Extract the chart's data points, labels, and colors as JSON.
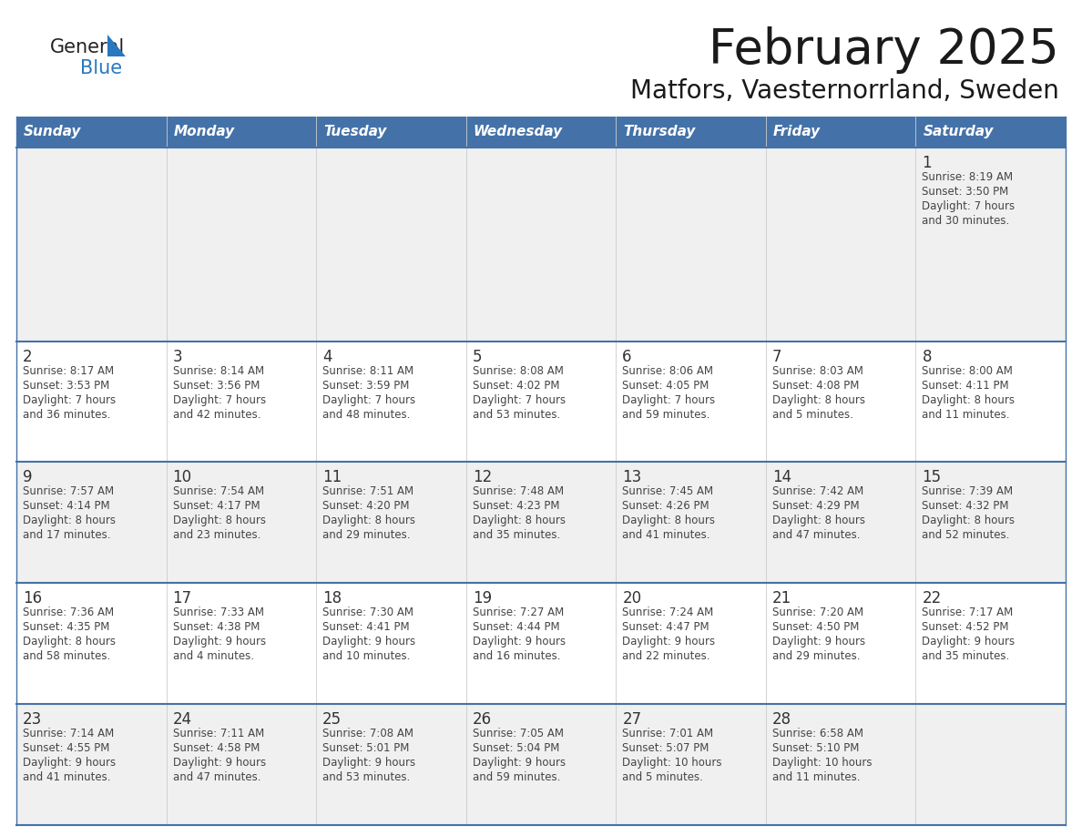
{
  "title": "February 2025",
  "subtitle": "Matfors, Vaesternorrland, Sweden",
  "header_bg": "#4472a8",
  "header_text": "#ffffff",
  "weekdays": [
    "Sunday",
    "Monday",
    "Tuesday",
    "Wednesday",
    "Thursday",
    "Friday",
    "Saturday"
  ],
  "row_bg_odd": "#f0f0f0",
  "row_bg_even": "#ffffff",
  "cell_text_color": "#444444",
  "day_num_color": "#333333",
  "border_color": "#4472a8",
  "separator_color": "#4472a8",
  "logo_general_color": "#222222",
  "logo_blue_color": "#2878c0",
  "calendar": [
    [
      {
        "day": "",
        "sunrise": "",
        "sunset": "",
        "daylight": ""
      },
      {
        "day": "",
        "sunrise": "",
        "sunset": "",
        "daylight": ""
      },
      {
        "day": "",
        "sunrise": "",
        "sunset": "",
        "daylight": ""
      },
      {
        "day": "",
        "sunrise": "",
        "sunset": "",
        "daylight": ""
      },
      {
        "day": "",
        "sunrise": "",
        "sunset": "",
        "daylight": ""
      },
      {
        "day": "",
        "sunrise": "",
        "sunset": "",
        "daylight": ""
      },
      {
        "day": "1",
        "sunrise": "Sunrise: 8:19 AM",
        "sunset": "Sunset: 3:50 PM",
        "daylight": "Daylight: 7 hours\nand 30 minutes."
      }
    ],
    [
      {
        "day": "2",
        "sunrise": "Sunrise: 8:17 AM",
        "sunset": "Sunset: 3:53 PM",
        "daylight": "Daylight: 7 hours\nand 36 minutes."
      },
      {
        "day": "3",
        "sunrise": "Sunrise: 8:14 AM",
        "sunset": "Sunset: 3:56 PM",
        "daylight": "Daylight: 7 hours\nand 42 minutes."
      },
      {
        "day": "4",
        "sunrise": "Sunrise: 8:11 AM",
        "sunset": "Sunset: 3:59 PM",
        "daylight": "Daylight: 7 hours\nand 48 minutes."
      },
      {
        "day": "5",
        "sunrise": "Sunrise: 8:08 AM",
        "sunset": "Sunset: 4:02 PM",
        "daylight": "Daylight: 7 hours\nand 53 minutes."
      },
      {
        "day": "6",
        "sunrise": "Sunrise: 8:06 AM",
        "sunset": "Sunset: 4:05 PM",
        "daylight": "Daylight: 7 hours\nand 59 minutes."
      },
      {
        "day": "7",
        "sunrise": "Sunrise: 8:03 AM",
        "sunset": "Sunset: 4:08 PM",
        "daylight": "Daylight: 8 hours\nand 5 minutes."
      },
      {
        "day": "8",
        "sunrise": "Sunrise: 8:00 AM",
        "sunset": "Sunset: 4:11 PM",
        "daylight": "Daylight: 8 hours\nand 11 minutes."
      }
    ],
    [
      {
        "day": "9",
        "sunrise": "Sunrise: 7:57 AM",
        "sunset": "Sunset: 4:14 PM",
        "daylight": "Daylight: 8 hours\nand 17 minutes."
      },
      {
        "day": "10",
        "sunrise": "Sunrise: 7:54 AM",
        "sunset": "Sunset: 4:17 PM",
        "daylight": "Daylight: 8 hours\nand 23 minutes."
      },
      {
        "day": "11",
        "sunrise": "Sunrise: 7:51 AM",
        "sunset": "Sunset: 4:20 PM",
        "daylight": "Daylight: 8 hours\nand 29 minutes."
      },
      {
        "day": "12",
        "sunrise": "Sunrise: 7:48 AM",
        "sunset": "Sunset: 4:23 PM",
        "daylight": "Daylight: 8 hours\nand 35 minutes."
      },
      {
        "day": "13",
        "sunrise": "Sunrise: 7:45 AM",
        "sunset": "Sunset: 4:26 PM",
        "daylight": "Daylight: 8 hours\nand 41 minutes."
      },
      {
        "day": "14",
        "sunrise": "Sunrise: 7:42 AM",
        "sunset": "Sunset: 4:29 PM",
        "daylight": "Daylight: 8 hours\nand 47 minutes."
      },
      {
        "day": "15",
        "sunrise": "Sunrise: 7:39 AM",
        "sunset": "Sunset: 4:32 PM",
        "daylight": "Daylight: 8 hours\nand 52 minutes."
      }
    ],
    [
      {
        "day": "16",
        "sunrise": "Sunrise: 7:36 AM",
        "sunset": "Sunset: 4:35 PM",
        "daylight": "Daylight: 8 hours\nand 58 minutes."
      },
      {
        "day": "17",
        "sunrise": "Sunrise: 7:33 AM",
        "sunset": "Sunset: 4:38 PM",
        "daylight": "Daylight: 9 hours\nand 4 minutes."
      },
      {
        "day": "18",
        "sunrise": "Sunrise: 7:30 AM",
        "sunset": "Sunset: 4:41 PM",
        "daylight": "Daylight: 9 hours\nand 10 minutes."
      },
      {
        "day": "19",
        "sunrise": "Sunrise: 7:27 AM",
        "sunset": "Sunset: 4:44 PM",
        "daylight": "Daylight: 9 hours\nand 16 minutes."
      },
      {
        "day": "20",
        "sunrise": "Sunrise: 7:24 AM",
        "sunset": "Sunset: 4:47 PM",
        "daylight": "Daylight: 9 hours\nand 22 minutes."
      },
      {
        "day": "21",
        "sunrise": "Sunrise: 7:20 AM",
        "sunset": "Sunset: 4:50 PM",
        "daylight": "Daylight: 9 hours\nand 29 minutes."
      },
      {
        "day": "22",
        "sunrise": "Sunrise: 7:17 AM",
        "sunset": "Sunset: 4:52 PM",
        "daylight": "Daylight: 9 hours\nand 35 minutes."
      }
    ],
    [
      {
        "day": "23",
        "sunrise": "Sunrise: 7:14 AM",
        "sunset": "Sunset: 4:55 PM",
        "daylight": "Daylight: 9 hours\nand 41 minutes."
      },
      {
        "day": "24",
        "sunrise": "Sunrise: 7:11 AM",
        "sunset": "Sunset: 4:58 PM",
        "daylight": "Daylight: 9 hours\nand 47 minutes."
      },
      {
        "day": "25",
        "sunrise": "Sunrise: 7:08 AM",
        "sunset": "Sunset: 5:01 PM",
        "daylight": "Daylight: 9 hours\nand 53 minutes."
      },
      {
        "day": "26",
        "sunrise": "Sunrise: 7:05 AM",
        "sunset": "Sunset: 5:04 PM",
        "daylight": "Daylight: 9 hours\nand 59 minutes."
      },
      {
        "day": "27",
        "sunrise": "Sunrise: 7:01 AM",
        "sunset": "Sunset: 5:07 PM",
        "daylight": "Daylight: 10 hours\nand 5 minutes."
      },
      {
        "day": "28",
        "sunrise": "Sunrise: 6:58 AM",
        "sunset": "Sunset: 5:10 PM",
        "daylight": "Daylight: 10 hours\nand 11 minutes."
      },
      {
        "day": "",
        "sunrise": "",
        "sunset": "",
        "daylight": ""
      }
    ]
  ]
}
